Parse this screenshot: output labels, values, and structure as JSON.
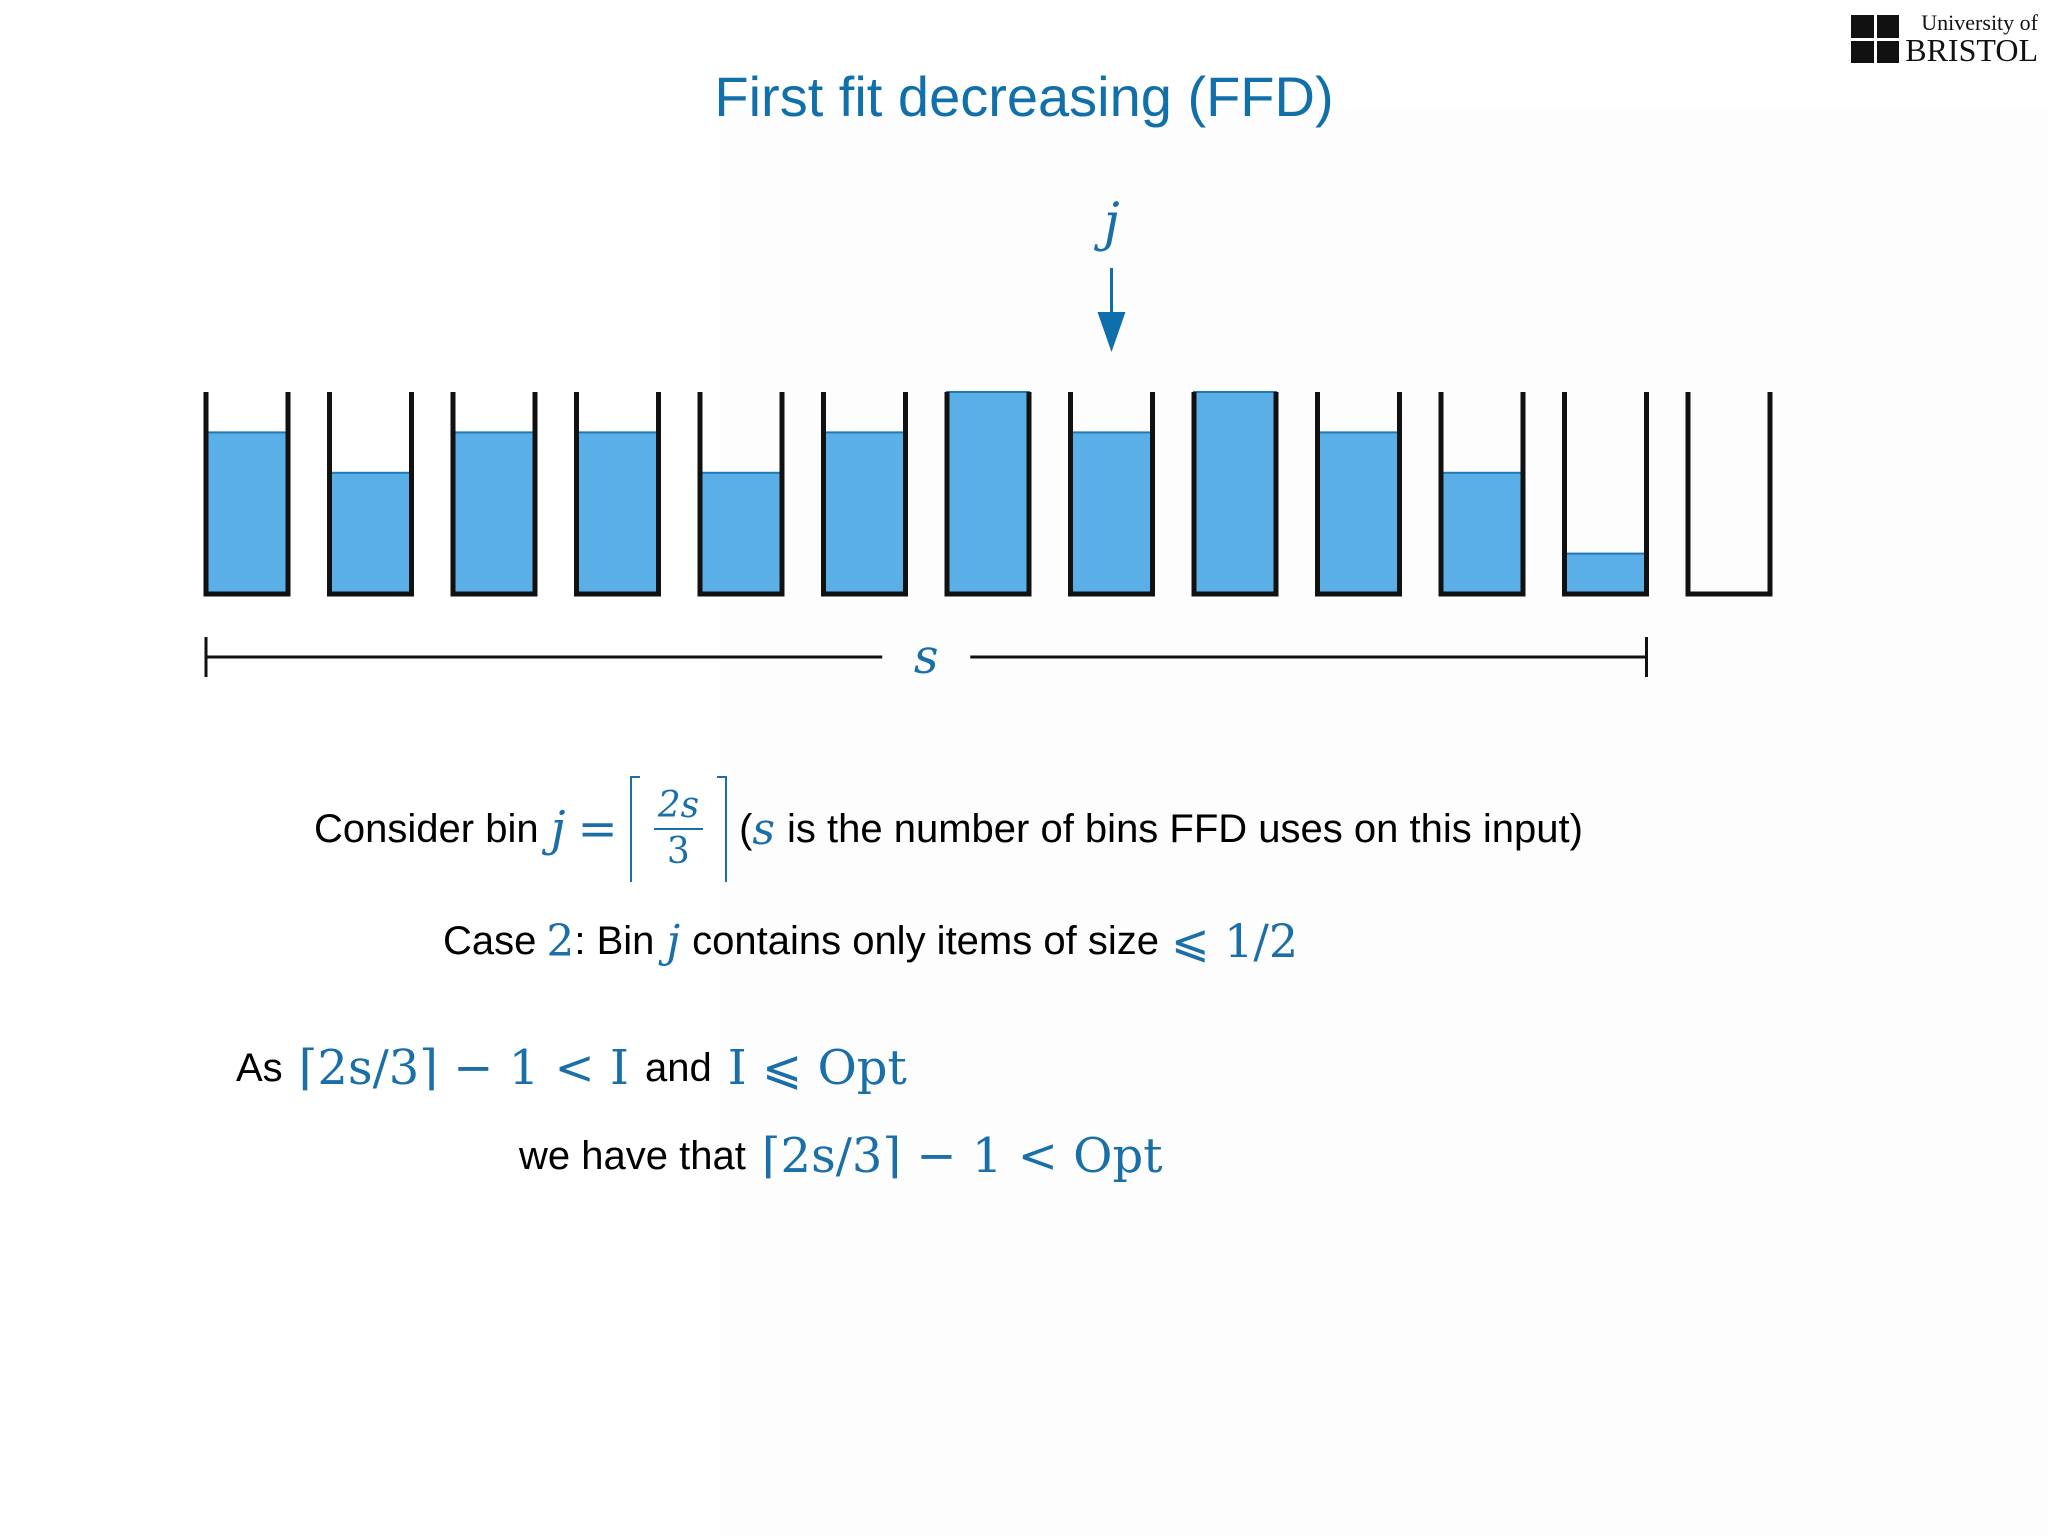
{
  "logo": {
    "line1": "University of",
    "line2": "BRISTOL"
  },
  "title": "First fit decreasing (FFD)",
  "diagram": {
    "pointer_label": "j",
    "pointer_bin_index": 7,
    "span_label": "s",
    "span_covers_bins": 12,
    "bins": [
      {
        "fill": 0.8
      },
      {
        "fill": 0.6
      },
      {
        "fill": 0.8
      },
      {
        "fill": 0.8
      },
      {
        "fill": 0.6
      },
      {
        "fill": 0.8
      },
      {
        "fill": 1.0
      },
      {
        "fill": 0.8
      },
      {
        "fill": 1.0
      },
      {
        "fill": 0.8
      },
      {
        "fill": 0.6
      },
      {
        "fill": 0.2
      },
      {
        "fill": 0.0
      }
    ],
    "colors": {
      "fill": "#5ab0e6",
      "fill_edge": "#1f78b8",
      "bin_outline": "#111111",
      "arrow": "#0f6fad"
    }
  },
  "text": {
    "line1": {
      "prefix": "Consider bin",
      "var": "j",
      "eq": "=",
      "frac_num": "2s",
      "frac_den": "3",
      "paren_open": "(",
      "s": "s",
      "rest": "is the number of bins FFD uses on this input)"
    },
    "line2": {
      "prefix": "Case",
      "case_num": "2",
      "mid": ": Bin",
      "var": "j",
      "rest": "contains only items of size",
      "bound": "⩽ 1/2"
    },
    "line3": {
      "prefix": "As",
      "expr1": "⌈2s/3⌉ − 1 < I",
      "mid": "and",
      "expr2": "I ⩽ Opt"
    },
    "line4": {
      "prefix": "we have that",
      "expr": "⌈2s/3⌉ − 1 < Opt"
    }
  }
}
